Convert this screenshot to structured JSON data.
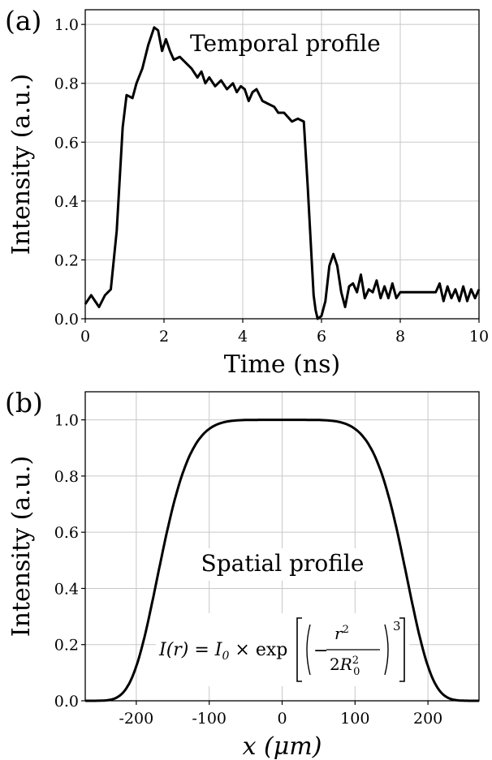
{
  "chart_data": [
    {
      "type": "line",
      "panel_label": "(a)",
      "annotation": "Temporal profile",
      "xlabel": "Time (ns)",
      "ylabel": "Intensity (a.u.)",
      "xlim": [
        0,
        10
      ],
      "ylim": [
        0,
        1.05
      ],
      "xticks": [
        0,
        2,
        4,
        6,
        8,
        10
      ],
      "xtick_labels": [
        "0",
        "2",
        "4",
        "6",
        "8",
        "10"
      ],
      "yticks": [
        0,
        0.2,
        0.4,
        0.6,
        0.8,
        1.0
      ],
      "ytick_labels": [
        "0.0",
        "0.2",
        "0.4",
        "0.6",
        "0.8",
        "1.0"
      ],
      "grid": true,
      "line_color": "#000000",
      "series": [
        {
          "x": [
            0,
            0.15,
            0.35,
            0.5,
            0.65,
            0.8,
            0.95,
            1.05,
            1.2,
            1.3,
            1.45,
            1.6,
            1.75,
            1.85,
            1.95,
            2.05,
            2.15,
            2.25,
            2.4,
            2.55,
            2.7,
            2.85,
            2.95,
            3.05,
            3.15,
            3.3,
            3.45,
            3.6,
            3.75,
            3.85,
            3.95,
            4.05,
            4.15,
            4.25,
            4.35,
            4.5,
            4.65,
            4.8,
            4.9,
            5.05,
            5.25,
            5.4,
            5.55,
            5.65,
            5.75,
            5.8,
            5.85,
            5.9,
            6.0,
            6.1,
            6.2,
            6.3,
            6.4,
            6.5,
            6.6,
            6.7,
            6.8,
            6.9,
            7.0,
            7.1,
            7.2,
            7.3,
            7.4,
            7.5,
            7.6,
            7.7,
            7.8,
            7.9,
            8.0,
            8.3,
            8.6,
            8.9,
            9.0,
            9.1,
            9.2,
            9.3,
            9.4,
            9.5,
            9.6,
            9.7,
            9.8,
            9.9,
            10.0
          ],
          "y": [
            0.05,
            0.08,
            0.04,
            0.08,
            0.1,
            0.3,
            0.65,
            0.76,
            0.75,
            0.8,
            0.85,
            0.93,
            0.99,
            0.98,
            0.91,
            0.95,
            0.91,
            0.88,
            0.89,
            0.87,
            0.85,
            0.82,
            0.84,
            0.8,
            0.82,
            0.79,
            0.81,
            0.78,
            0.8,
            0.77,
            0.79,
            0.78,
            0.74,
            0.77,
            0.78,
            0.74,
            0.73,
            0.72,
            0.7,
            0.7,
            0.67,
            0.68,
            0.67,
            0.45,
            0.2,
            0.08,
            0.03,
            0.0,
            0.01,
            0.06,
            0.18,
            0.22,
            0.18,
            0.09,
            0.04,
            0.11,
            0.12,
            0.09,
            0.15,
            0.07,
            0.1,
            0.09,
            0.13,
            0.07,
            0.11,
            0.07,
            0.12,
            0.07,
            0.09,
            0.09,
            0.09,
            0.09,
            0.12,
            0.06,
            0.11,
            0.07,
            0.1,
            0.06,
            0.11,
            0.06,
            0.1,
            0.07,
            0.1
          ]
        }
      ]
    },
    {
      "type": "line",
      "panel_label": "(b)",
      "annotation": "Spatial profile",
      "formula": "I(r) = I_0 × exp[(−r²/2R_0²)³]",
      "xlabel": "x (μm)",
      "ylabel": "Intensity (a.u.)",
      "xlim": [
        -270,
        270
      ],
      "ylim": [
        0,
        1.1
      ],
      "xticks": [
        -200,
        -100,
        0,
        100,
        200
      ],
      "xtick_labels": [
        "-200",
        "-100",
        "0",
        "100",
        "200"
      ],
      "yticks": [
        0,
        0.2,
        0.4,
        0.6,
        0.8,
        1.0
      ],
      "ytick_labels": [
        "0.0",
        "0.2",
        "0.4",
        "0.6",
        "0.8",
        "1.0"
      ],
      "grid": true,
      "line_color": "#000000",
      "series": [
        {
          "function": "exp(-(x^2/(2*R0^2))^3)",
          "R0": 125,
          "x_range": [
            -270,
            270
          ]
        }
      ]
    }
  ]
}
